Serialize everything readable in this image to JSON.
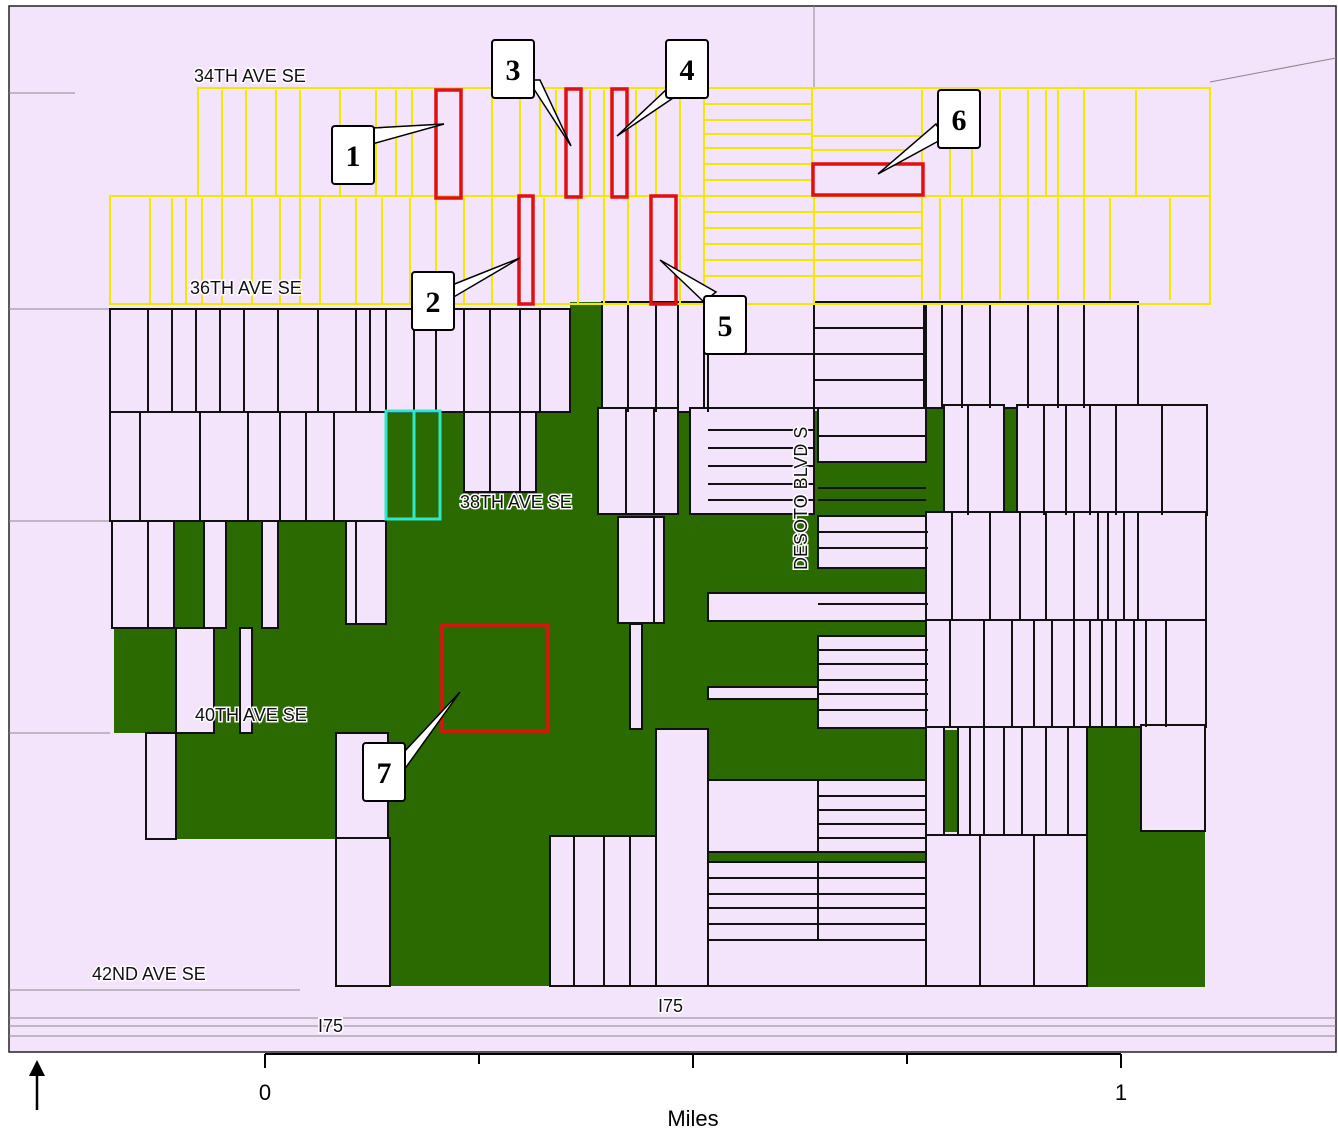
{
  "map": {
    "streets": {
      "s34": "34TH AVE SE",
      "s36": "36TH AVE SE",
      "s38": "38TH AVE SE",
      "s40": "40TH AVE SE",
      "s42": "42ND AVE SE",
      "desoto": "DESOTO BLVD S",
      "i75_right": "I75",
      "i75_left": "I75"
    },
    "callouts": [
      "1",
      "2",
      "3",
      "4",
      "5",
      "6",
      "7"
    ],
    "scale": {
      "zero": "0",
      "one": "1",
      "unit": "Miles"
    },
    "colors": {
      "background": "#f3e3fb",
      "conserved": "#2a6a00",
      "yellow_parcels": "#f5e800",
      "red_parcels": "#e01010",
      "cyan_parcel": "#2ee8c8",
      "parcel_lines": "#111111"
    },
    "north_arrow": "arrow-up-icon"
  }
}
